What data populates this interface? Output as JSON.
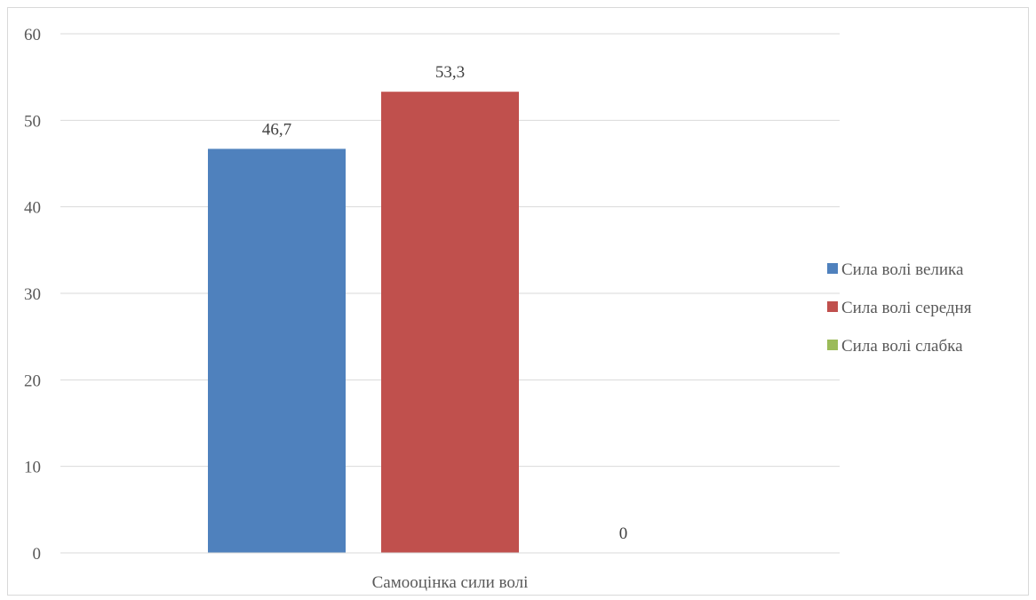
{
  "chart_data": {
    "type": "bar",
    "categories": [
      "Самооцінка сили волі"
    ],
    "series": [
      {
        "name": "Сила волі велика",
        "values": [
          46.7
        ],
        "label": "46,7",
        "color": "#4f81bd"
      },
      {
        "name": "Сила волі середня",
        "values": [
          53.3
        ],
        "label": "53,3",
        "color": "#c0504d"
      },
      {
        "name": "Сила волі слабка",
        "values": [
          0
        ],
        "label": "0",
        "color": "#9bbb59"
      }
    ],
    "title": "",
    "xlabel": "",
    "ylabel": "",
    "ylim": [
      0,
      60
    ],
    "yticks": [
      "0",
      "10",
      "20",
      "30",
      "40",
      "50",
      "60"
    ],
    "grid": true,
    "legend_position": "right"
  }
}
